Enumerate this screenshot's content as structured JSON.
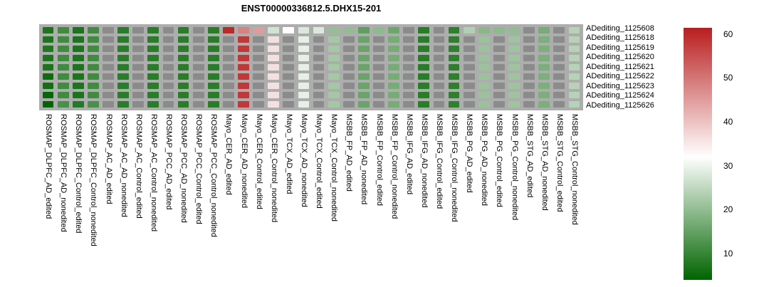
{
  "title": "ENST00000336812.5.DHX15-201",
  "chart_data": {
    "type": "heatmap",
    "title": "ENST00000336812.5.DHX15-201",
    "rows": [
      "ADediting_1125608",
      "ADediting_1125618",
      "ADediting_1125619",
      "ADediting_1125620",
      "ADediting_1125621",
      "ADediting_1125622",
      "ADediting_1125623",
      "ADediting_1125624",
      "ADediting_1125626"
    ],
    "columns": [
      "ROSMAP_DLPFC_AD_edited",
      "ROSMAP_DLPFC_AD_nonedited",
      "ROSMAP_DLPFC_Control_edited",
      "ROSMAP_DLPFC_Control_nonedited",
      "ROSMAP_AC_AD_edited",
      "ROSMAP_AC_AD_nonedited",
      "ROSMAP_AC_Control_edited",
      "ROSMAP_AC_Control_nonedited",
      "ROSMAP_PCC_AD_edited",
      "ROSMAP_PCC_AD_nonedited",
      "ROSMAP_PCC_Control_edited",
      "ROSMAP_PCC_Control_nonedited",
      "Mayo_CER_AD_edited",
      "Mayo_CER_AD_nonedited",
      "Mayo_CER_Control_edited",
      "Mayo_CER_Control_nonedited",
      "Mayo_TCX_AD_edited",
      "Mayo_TCX_AD_nonedited",
      "Mayo_TCX_Control_edited",
      "Mayo_TCX_Control_nonedited",
      "MSBB_FP_AD_edited",
      "MSBB_FP_AD_nonedited",
      "MSBB_FP_Control_edited",
      "MSBB_FP_Control_nonedited",
      "MSBB_IFG_AD_edited",
      "MSBB_IFG_AD_nonedited",
      "MSBB_IFG_Control_edited",
      "MSBB_IFG_Control_nonedited",
      "MSBB_PG_AD_edited",
      "MSBB_PG_AD_nonedited",
      "MSBB_PG_Control_edited",
      "MSBB_PG_Control_nonedited",
      "MSBB_STG_AD_edited",
      "MSBB_STG_AD_nonedited",
      "MSBB_STG_Control_edited",
      "MSBB_STG_Control_nonedited"
    ],
    "values": [
      [
        7,
        11,
        7,
        11,
        null,
        8.5,
        null,
        8.5,
        null,
        8.5,
        null,
        8.5,
        60,
        48.5,
        45,
        27,
        31.8,
        28,
        28,
        20.5,
        20,
        14.5,
        19.5,
        16,
        null,
        8.5,
        null,
        9,
        23.5,
        19,
        19.5,
        20,
        null,
        17,
        null,
        24
      ],
      [
        7,
        11,
        7,
        11,
        null,
        8.5,
        null,
        8.5,
        null,
        8.5,
        null,
        8.5,
        null,
        58,
        null,
        36,
        null,
        29.3,
        null,
        22,
        null,
        15.5,
        null,
        17,
        null,
        8.5,
        null,
        9,
        null,
        21,
        null,
        21.3,
        null,
        17.5,
        null,
        24
      ],
      [
        7.5,
        11,
        7,
        11,
        null,
        8.5,
        null,
        8.5,
        null,
        8.5,
        null,
        8.5,
        null,
        58,
        null,
        36,
        null,
        29.3,
        null,
        22,
        null,
        15.5,
        null,
        17,
        null,
        8.5,
        null,
        9,
        null,
        21,
        null,
        21.3,
        null,
        17.5,
        null,
        24
      ],
      [
        7,
        11,
        7,
        11,
        null,
        8.5,
        null,
        8.5,
        null,
        8.5,
        null,
        8.5,
        null,
        58,
        null,
        36,
        null,
        29.3,
        null,
        22,
        null,
        15.5,
        null,
        17,
        null,
        8.5,
        null,
        9,
        null,
        21,
        null,
        21.3,
        null,
        17.5,
        null,
        24
      ],
      [
        7,
        11,
        7,
        11,
        null,
        8.5,
        null,
        8.5,
        null,
        8.5,
        null,
        8.5,
        null,
        58,
        null,
        36,
        null,
        29.3,
        null,
        22,
        null,
        15.5,
        null,
        17,
        null,
        8.5,
        null,
        9,
        null,
        21,
        null,
        21.3,
        null,
        17.5,
        null,
        24
      ],
      [
        5.5,
        11,
        7,
        11,
        null,
        8.5,
        null,
        8.5,
        null,
        8.5,
        null,
        8.5,
        null,
        58,
        null,
        36,
        null,
        29.3,
        null,
        22,
        null,
        15.5,
        null,
        17,
        null,
        8.5,
        null,
        9,
        null,
        21,
        null,
        21.3,
        null,
        17.5,
        null,
        24
      ],
      [
        6,
        11,
        7,
        11,
        null,
        8.5,
        null,
        8.5,
        null,
        8.5,
        null,
        8.5,
        null,
        58,
        null,
        36,
        null,
        29.3,
        null,
        22,
        null,
        15.5,
        null,
        17,
        null,
        8.5,
        null,
        9,
        null,
        21,
        null,
        21.3,
        null,
        17.5,
        null,
        24
      ],
      [
        4.5,
        11,
        7,
        11,
        null,
        8.5,
        null,
        8.5,
        null,
        8.5,
        null,
        8.5,
        null,
        58,
        null,
        36,
        null,
        29.3,
        null,
        22,
        null,
        15.5,
        null,
        17,
        null,
        8.5,
        null,
        9,
        null,
        21,
        null,
        21.3,
        null,
        17.5,
        null,
        24
      ],
      [
        4,
        12,
        8,
        12,
        null,
        8.5,
        null,
        8.5,
        null,
        8.5,
        null,
        8.5,
        null,
        58,
        null,
        36,
        null,
        29.3,
        null,
        22,
        null,
        15.5,
        null,
        17,
        null,
        8.5,
        null,
        9,
        null,
        21,
        null,
        21.3,
        null,
        17.5,
        null,
        24
      ]
    ],
    "colorscale": {
      "min": 4,
      "mid": 32,
      "max": 61.4,
      "min_color": "#006400",
      "mid_color": "#ffffff",
      "max_color": "#b91e1e",
      "na_color": "#8b8b8b",
      "grid_color": "#adadad"
    },
    "colorbar_ticks": [
      60,
      50,
      40,
      30,
      20,
      10
    ],
    "legend_position": "right",
    "grid": false
  }
}
